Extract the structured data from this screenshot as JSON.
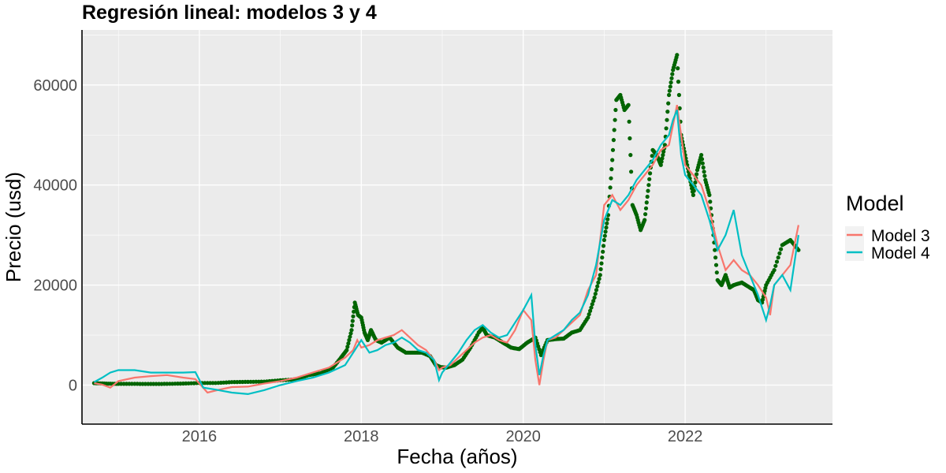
{
  "chart_data": {
    "type": "line",
    "title": "Regresión lineal: modelos 3 y 4",
    "xlabel": "Fecha (años)",
    "ylabel": "Precio (usd)",
    "xlim": [
      2014.55,
      2023.82
    ],
    "ylim": [
      -7800,
      71000
    ],
    "x_ticks": [
      2016,
      2018,
      2020,
      2022
    ],
    "x_tick_labels": [
      "2016",
      "2018",
      "2020",
      "2022"
    ],
    "y_ticks": [
      0,
      20000,
      40000,
      60000
    ],
    "y_tick_labels": [
      "0",
      "20000",
      "40000",
      "60000"
    ],
    "grid": true,
    "legend": {
      "title": "Model",
      "position": "right",
      "entries": [
        {
          "label": "Model 3",
          "color": "#F8766D"
        },
        {
          "label": "Model 4",
          "color": "#00BFC4"
        }
      ]
    },
    "colors": {
      "panel_bg": "#EBEBEB",
      "grid_major": "#FFFFFF",
      "actual": "#006400",
      "model3": "#F8766D",
      "model4": "#00BFC4",
      "axis": "#000000"
    },
    "actual": {
      "x": [
        2014.7,
        2014.85,
        2015.0,
        2015.2,
        2015.4,
        2015.6,
        2015.8,
        2016.0,
        2016.2,
        2016.4,
        2016.6,
        2016.8,
        2017.0,
        2017.2,
        2017.35,
        2017.5,
        2017.65,
        2017.75,
        2017.82,
        2017.88,
        2017.92,
        2017.96,
        2018.0,
        2018.04,
        2018.08,
        2018.12,
        2018.18,
        2018.25,
        2018.35,
        2018.45,
        2018.55,
        2018.65,
        2018.75,
        2018.85,
        2018.92,
        2018.98,
        2019.05,
        2019.15,
        2019.25,
        2019.35,
        2019.45,
        2019.5,
        2019.55,
        2019.65,
        2019.75,
        2019.85,
        2019.95,
        2020.05,
        2020.15,
        2020.22,
        2020.3,
        2020.4,
        2020.5,
        2020.6,
        2020.7,
        2020.8,
        2020.88,
        2020.95,
        2021.0,
        2021.05,
        2021.1,
        2021.15,
        2021.2,
        2021.25,
        2021.3,
        2021.35,
        2021.4,
        2021.45,
        2021.5,
        2021.55,
        2021.6,
        2021.65,
        2021.7,
        2021.75,
        2021.8,
        2021.85,
        2021.9,
        2021.95,
        2022.0,
        2022.05,
        2022.1,
        2022.15,
        2022.2,
        2022.25,
        2022.3,
        2022.35,
        2022.4,
        2022.45,
        2022.5,
        2022.55,
        2022.6,
        2022.7,
        2022.8,
        2022.85,
        2022.9,
        2022.95,
        2023.0,
        2023.1,
        2023.2,
        2023.3,
        2023.4
      ],
      "y": [
        400,
        300,
        250,
        250,
        230,
        250,
        320,
        420,
        420,
        600,
        650,
        700,
        960,
        1150,
        2000,
        2400,
        3500,
        5500,
        7000,
        11000,
        16500,
        14000,
        13500,
        10500,
        9000,
        11000,
        9000,
        8500,
        9500,
        7500,
        6500,
        6500,
        6500,
        5800,
        4000,
        3600,
        3500,
        4000,
        5100,
        7500,
        10500,
        11500,
        10000,
        9500,
        8500,
        7500,
        7200,
        8500,
        9500,
        6000,
        9000,
        9200,
        9300,
        10500,
        11000,
        13500,
        17500,
        22000,
        29000,
        34000,
        45000,
        57000,
        58000,
        55000,
        56000,
        36000,
        34000,
        31000,
        33000,
        40000,
        47000,
        46000,
        44000,
        48000,
        58000,
        63000,
        66000,
        50000,
        46000,
        42000,
        38000,
        43000,
        46000,
        41000,
        38000,
        30000,
        21000,
        20000,
        22000,
        19500,
        20000,
        20500,
        19500,
        19000,
        17000,
        16500,
        20000,
        23000,
        28000,
        29000,
        27000
      ]
    },
    "series": [
      {
        "name": "Model 3",
        "x": [
          2014.7,
          2014.8,
          2014.9,
          2015.0,
          2015.2,
          2015.4,
          2015.6,
          2015.8,
          2015.95,
          2016.1,
          2016.25,
          2016.4,
          2016.6,
          2016.8,
          2017.0,
          2017.2,
          2017.4,
          2017.6,
          2017.8,
          2017.9,
          2017.95,
          2018.0,
          2018.1,
          2018.2,
          2018.3,
          2018.4,
          2018.5,
          2018.6,
          2018.7,
          2018.8,
          2018.9,
          2018.96,
          2019.0,
          2019.1,
          2019.2,
          2019.3,
          2019.4,
          2019.5,
          2019.6,
          2019.7,
          2019.8,
          2019.9,
          2020.0,
          2020.1,
          2020.15,
          2020.2,
          2020.25,
          2020.3,
          2020.4,
          2020.5,
          2020.6,
          2020.7,
          2020.8,
          2020.9,
          2021.0,
          2021.1,
          2021.2,
          2021.3,
          2021.4,
          2021.5,
          2021.6,
          2021.7,
          2021.8,
          2021.85,
          2021.9,
          2021.95,
          2022.0,
          2022.1,
          2022.2,
          2022.3,
          2022.4,
          2022.5,
          2022.6,
          2022.7,
          2022.8,
          2022.9,
          2023.0,
          2023.05,
          2023.1,
          2023.2,
          2023.3,
          2023.4
        ],
        "y": [
          400,
          100,
          -500,
          800,
          1500,
          1800,
          2000,
          1500,
          1200,
          -1500,
          -900,
          -400,
          -300,
          300,
          800,
          1500,
          2500,
          3500,
          5500,
          7000,
          9000,
          7500,
          8000,
          9000,
          9500,
          10000,
          11000,
          9500,
          8000,
          7000,
          5000,
          3000,
          3500,
          4000,
          5500,
          7000,
          8500,
          9500,
          10000,
          9000,
          8500,
          11000,
          15000,
          13000,
          5000,
          0,
          5000,
          9000,
          9500,
          11000,
          12500,
          14000,
          19000,
          22000,
          36000,
          38000,
          35000,
          37000,
          40000,
          42000,
          44000,
          47000,
          48000,
          52000,
          56000,
          50000,
          44000,
          42000,
          40000,
          35000,
          28000,
          23000,
          25000,
          23000,
          22000,
          20000,
          17500,
          14000,
          20000,
          22000,
          24000,
          32000
        ]
      },
      {
        "name": "Model 4",
        "x": [
          2014.7,
          2014.8,
          2014.9,
          2015.0,
          2015.2,
          2015.4,
          2015.6,
          2015.8,
          2015.95,
          2016.05,
          2016.2,
          2016.4,
          2016.6,
          2016.8,
          2017.0,
          2017.2,
          2017.4,
          2017.6,
          2017.8,
          2017.92,
          2018.0,
          2018.1,
          2018.2,
          2018.3,
          2018.4,
          2018.5,
          2018.6,
          2018.7,
          2018.8,
          2018.9,
          2018.96,
          2019.0,
          2019.1,
          2019.2,
          2019.3,
          2019.4,
          2019.5,
          2019.6,
          2019.7,
          2019.8,
          2019.9,
          2020.0,
          2020.1,
          2020.15,
          2020.2,
          2020.25,
          2020.3,
          2020.4,
          2020.5,
          2020.6,
          2020.7,
          2020.8,
          2020.9,
          2021.0,
          2021.1,
          2021.2,
          2021.3,
          2021.4,
          2021.5,
          2021.6,
          2021.7,
          2021.8,
          2021.85,
          2021.9,
          2021.95,
          2022.0,
          2022.1,
          2022.2,
          2022.3,
          2022.4,
          2022.5,
          2022.6,
          2022.7,
          2022.8,
          2022.9,
          2023.0,
          2023.05,
          2023.1,
          2023.2,
          2023.3,
          2023.4
        ],
        "y": [
          600,
          1500,
          2500,
          3000,
          3000,
          2500,
          2500,
          2500,
          2600,
          -500,
          -900,
          -1500,
          -1800,
          -1000,
          0,
          800,
          1500,
          2500,
          4000,
          7000,
          9000,
          6500,
          7000,
          8000,
          8500,
          9500,
          8500,
          7000,
          6500,
          5000,
          1000,
          2500,
          4500,
          6500,
          9000,
          11000,
          12000,
          10500,
          9500,
          10000,
          12500,
          15000,
          18000,
          8000,
          2000,
          6000,
          9000,
          10000,
          11000,
          13000,
          14500,
          18000,
          24000,
          33000,
          37000,
          36000,
          38000,
          41000,
          43000,
          45000,
          48000,
          50000,
          53000,
          55000,
          46000,
          42000,
          40000,
          38000,
          33000,
          27000,
          30000,
          35000,
          26000,
          22000,
          18000,
          13000,
          16000,
          20000,
          22000,
          19000,
          30000
        ]
      }
    ]
  }
}
